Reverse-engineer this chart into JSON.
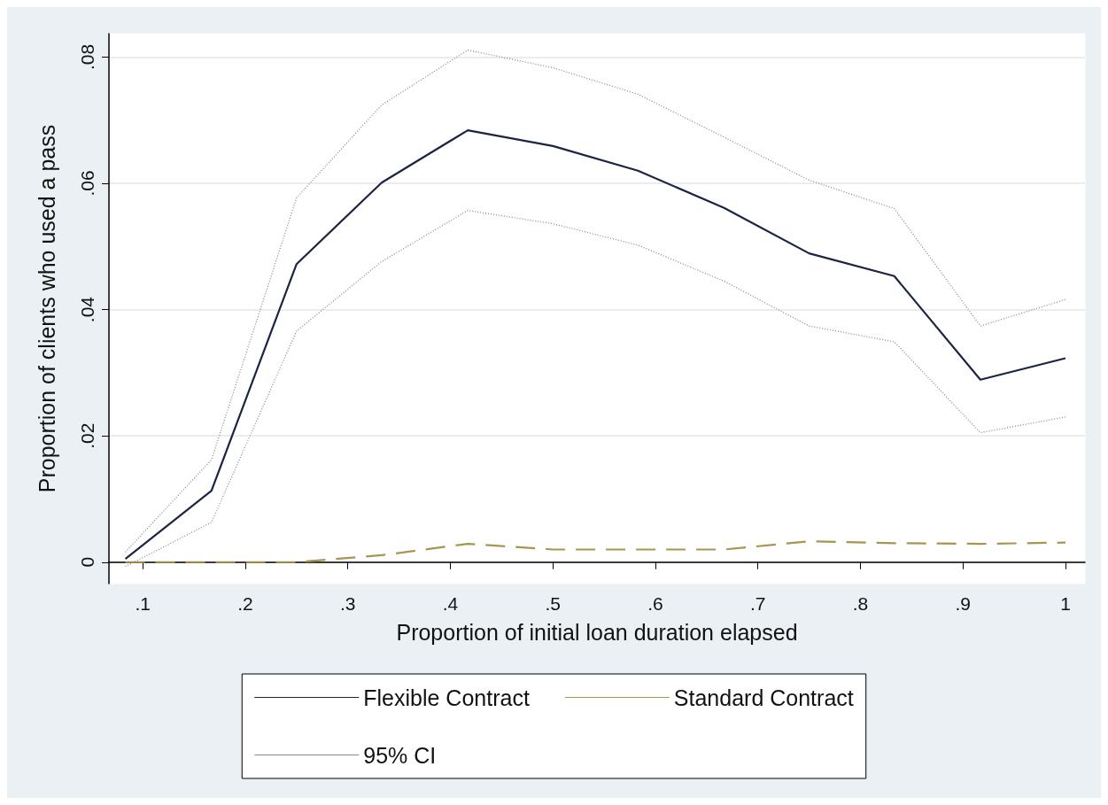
{
  "chart_data": {
    "type": "line",
    "xlabel": "Proportion of initial loan duration elapsed",
    "ylabel": "Proportion of clients who used a pass",
    "x": [
      0.083,
      0.167,
      0.25,
      0.333,
      0.417,
      0.5,
      0.583,
      0.667,
      0.75,
      0.833,
      0.917,
      1
    ],
    "series": [
      {
        "name": "Flexible Contract",
        "color": "#1c2444",
        "line_style": "solid",
        "values": [
          0.0005,
          0.0113,
          0.0472,
          0.0601,
          0.0684,
          0.0659,
          0.062,
          0.0561,
          0.0489,
          0.0453,
          0.0289,
          0.0323
        ]
      },
      {
        "name": "Standard Contract",
        "color": "#a89550",
        "line_style": "dashed",
        "values": [
          0,
          0,
          0,
          0.0011,
          0.0029,
          0.002,
          0.002,
          0.002,
          0.0033,
          0.003,
          0.0029,
          0.0031
        ]
      },
      {
        "name": "95% CI",
        "color": "#8a8a8a",
        "line_style": "dotted",
        "values": [
          0.0016,
          0.0162,
          0.0577,
          0.0724,
          0.0811,
          0.0783,
          0.0741,
          0.0673,
          0.0605,
          0.056,
          0.0374,
          0.0416
        ]
      },
      {
        "color": "#8a8a8a",
        "line_style": "dotted",
        "values": [
          -0.0007,
          0.0063,
          0.0366,
          0.0476,
          0.0557,
          0.0536,
          0.0502,
          0.0445,
          0.0374,
          0.0349,
          0.0205,
          0.023
        ]
      }
    ],
    "xlim": [
      0.067,
      1.019
    ],
    "xticks": [
      {
        "value": 0.1,
        "label": ".1"
      },
      {
        "value": 0.2,
        "label": ".2"
      },
      {
        "value": 0.3,
        "label": ".3"
      },
      {
        "value": 0.4,
        "label": ".4"
      },
      {
        "value": 0.5,
        "label": ".5"
      },
      {
        "value": 0.6,
        "label": ".6"
      },
      {
        "value": 0.7,
        "label": ".7"
      },
      {
        "value": 0.8,
        "label": ".8"
      },
      {
        "value": 0.9,
        "label": ".9"
      },
      1
    ],
    "ylim": [
      -0.0034,
      0.0837
    ],
    "yticks": [
      0,
      {
        "value": 0.02,
        "label": ".02"
      },
      {
        "value": 0.04,
        "label": ".04"
      },
      {
        "value": 0.06,
        "label": ".06"
      },
      {
        "value": 0.08,
        "label": ".08"
      }
    ],
    "grid": "y",
    "legend": "bottom",
    "marker": "none"
  }
}
